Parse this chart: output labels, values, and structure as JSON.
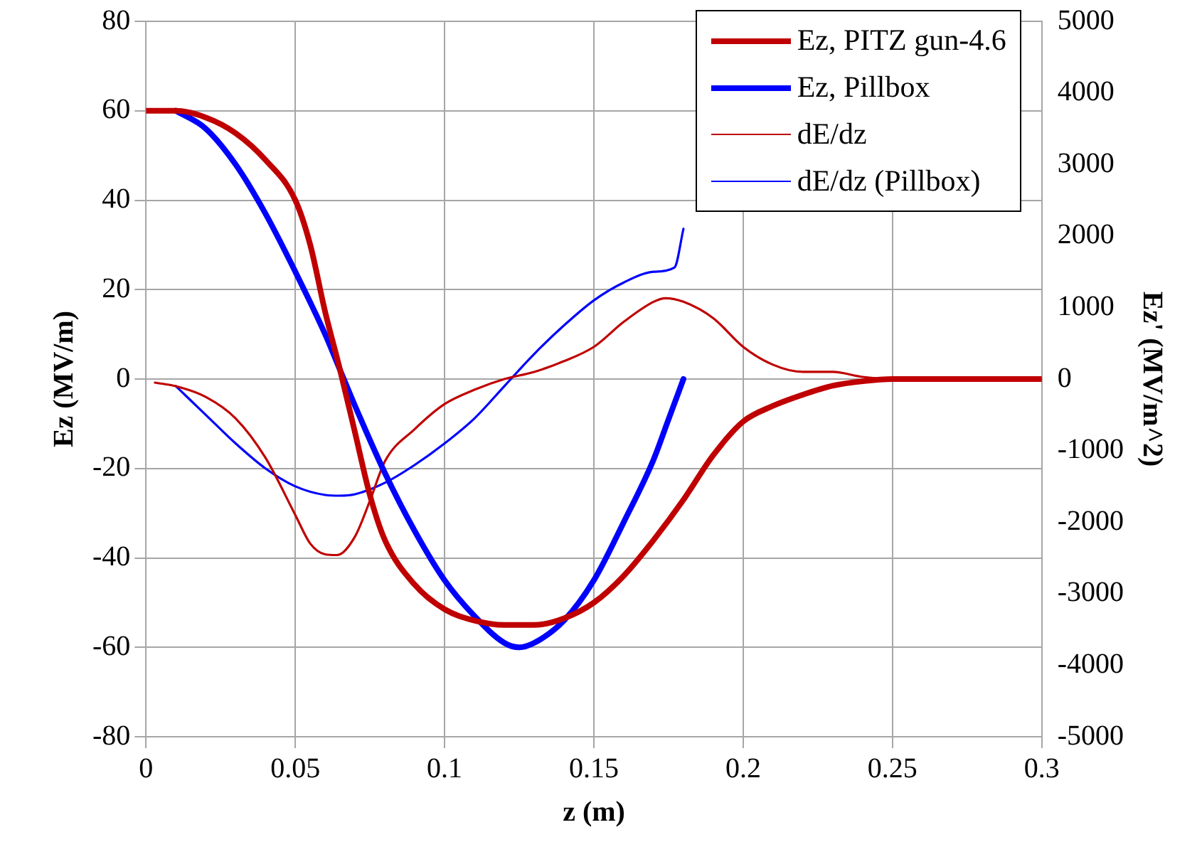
{
  "chart_data": {
    "type": "line",
    "xlabel": "z (m)",
    "ylabel": "Ez (MV/m)",
    "y2label": "Ez' (MV/m^2)",
    "xlim": [
      0,
      0.3
    ],
    "xticks": [
      0,
      0.05,
      0.1,
      0.15,
      0.2,
      0.25,
      0.3
    ],
    "ylim": [
      -80,
      80
    ],
    "yticks": [
      -80,
      -60,
      -40,
      -20,
      0,
      20,
      40,
      60,
      80
    ],
    "y2lim": [
      -5000,
      5000
    ],
    "y2ticks": [
      -5000,
      -4000,
      -3000,
      -2000,
      -1000,
      0,
      1000,
      2000,
      3000,
      4000,
      5000
    ],
    "grid": true,
    "legend": "top right",
    "marker": "none",
    "line_style": "solid",
    "series": [
      {
        "name": "Ez, PITZ gun-4.6",
        "color": "#c00000",
        "x": [
          0,
          0.01,
          0.02,
          0.03,
          0.04,
          0.05,
          0.055,
          0.06,
          0.065,
          0.07,
          0.075,
          0.08,
          0.09,
          0.1,
          0.11,
          0.12,
          0.13,
          0.14,
          0.15,
          0.16,
          0.17,
          0.18,
          0.19,
          0.2,
          0.21,
          0.22,
          0.23,
          0.24,
          0.25,
          0.3
        ],
        "values": [
          60,
          60,
          58.5,
          55,
          49,
          40,
          30,
          15,
          2,
          -12,
          -26,
          -36,
          -46,
          -51.5,
          -54,
          -55,
          -55,
          -53.5,
          -50,
          -44,
          -36,
          -27,
          -17,
          -9.5,
          -6,
          -3.5,
          -1.5,
          -0.5,
          0,
          0
        ]
      },
      {
        "name": "Ez, Pillbox",
        "color": "#0000ff",
        "x": [
          0.01,
          0.02,
          0.03,
          0.04,
          0.05,
          0.06,
          0.065,
          0.07,
          0.08,
          0.09,
          0.1,
          0.11,
          0.12,
          0.125,
          0.13,
          0.14,
          0.15,
          0.16,
          0.17,
          0.175,
          0.18
        ],
        "values": [
          60,
          56,
          48,
          37,
          24,
          10,
          2,
          -6,
          -21,
          -34,
          -45,
          -53,
          -59,
          -60,
          -59,
          -54,
          -45,
          -32,
          -18,
          -9,
          0
        ]
      },
      {
        "name": "dE/dz",
        "color": "#c00000",
        "axis": "y2",
        "x": [
          0.003,
          0.01,
          0.02,
          0.03,
          0.04,
          0.05,
          0.055,
          0.06,
          0.064,
          0.07,
          0.075,
          0.08,
          0.09,
          0.1,
          0.11,
          0.12,
          0.13,
          0.14,
          0.15,
          0.16,
          0.17,
          0.174,
          0.18,
          0.19,
          0.2,
          0.21,
          0.22,
          0.23,
          0.24,
          0.25,
          0.3
        ],
        "values": [
          -50,
          -100,
          -250,
          -550,
          -1100,
          -1900,
          -2300,
          -2450,
          -2460,
          -2200,
          -1700,
          -1150,
          -700,
          -350,
          -150,
          0,
          100,
          250,
          450,
          800,
          1080,
          1130,
          1080,
          850,
          450,
          200,
          100,
          100,
          30,
          0,
          0
        ]
      },
      {
        "name": "dE/dz (Pillbox)",
        "color": "#0000ff",
        "axis": "y2",
        "x": [
          0.01,
          0.02,
          0.03,
          0.04,
          0.05,
          0.06,
          0.065,
          0.07,
          0.08,
          0.09,
          0.1,
          0.11,
          0.12,
          0.13,
          0.14,
          0.15,
          0.16,
          0.17,
          0.177,
          0.18
        ],
        "values": [
          -100,
          -500,
          -900,
          -1250,
          -1500,
          -1620,
          -1630,
          -1610,
          -1450,
          -1200,
          -900,
          -550,
          -100,
          350,
          750,
          1100,
          1350,
          1500,
          1560,
          2100
        ]
      }
    ]
  }
}
